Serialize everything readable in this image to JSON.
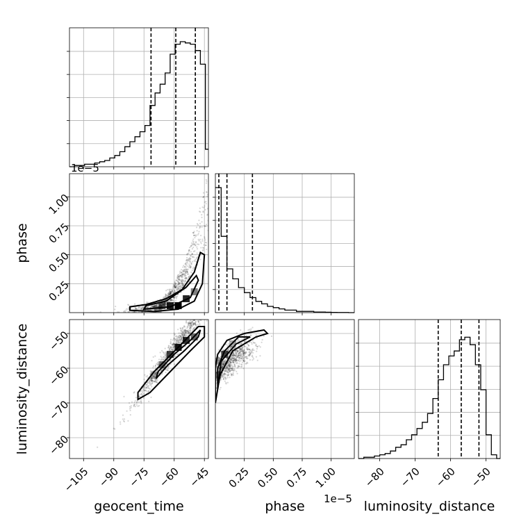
{
  "chart_data": {
    "type": "corner",
    "parameters": [
      "geocent_time",
      "phase",
      "luminosity_distance"
    ],
    "axis_labels": {
      "geocent_time": "geocent_time",
      "phase": "phase",
      "luminosity_distance": "luminosity_distance"
    },
    "offset_labels": {
      "phase_x": "1e−5",
      "phase_y": "1e−5"
    },
    "ticks": {
      "geocent_time": {
        "values": [
          -105,
          -90,
          -75,
          -60,
          -45
        ],
        "labels": [
          "−105",
          "−90",
          "−75",
          "−60",
          "−45"
        ]
      },
      "phase": {
        "values": [
          0.25,
          0.5,
          0.75,
          1.0
        ],
        "labels": [
          "0.25",
          "0.50",
          "0.75",
          "1.00"
        ]
      },
      "luminosity_distance": {
        "values": [
          -80,
          -70,
          -60,
          -50
        ],
        "labels": [
          "−80",
          "−70",
          "−60",
          "−50"
        ]
      }
    },
    "ranges": {
      "geocent_time": [
        -112,
        -43
      ],
      "phase": [
        0.0,
        1.2
      ],
      "luminosity_distance": [
        -86,
        -46
      ]
    },
    "histograms": {
      "geocent_time": {
        "bin_edges": [
          -112,
          -109.5,
          -107,
          -104.5,
          -102,
          -99.5,
          -97,
          -94.5,
          -92,
          -89.5,
          -87,
          -84.5,
          -82,
          -79.5,
          -77,
          -74.5,
          -72,
          -69.5,
          -67,
          -64.5,
          -62,
          -59.5,
          -57,
          -54.5,
          -52,
          -49.5,
          -47,
          -44.5,
          -43
        ],
        "counts": [
          0,
          0.01,
          0.01,
          0.02,
          0.02,
          0.03,
          0.04,
          0.05,
          0.07,
          0.09,
          0.12,
          0.16,
          0.2,
          0.24,
          0.28,
          0.33,
          0.49,
          0.59,
          0.66,
          0.75,
          0.9,
          0.98,
          1.0,
          0.99,
          0.98,
          0.93,
          0.82,
          0.14
        ],
        "quantiles": [
          -71.5,
          -59.2,
          -49.5
        ]
      },
      "phase": {
        "bin_edges": [
          0.0,
          0.05,
          0.1,
          0.15,
          0.2,
          0.25,
          0.3,
          0.35,
          0.4,
          0.45,
          0.5,
          0.55,
          0.6,
          0.65,
          0.7,
          0.75,
          0.8,
          0.85,
          0.9,
          0.95,
          1.0,
          1.05,
          1.1,
          1.15,
          1.2
        ],
        "counts": [
          1.0,
          0.61,
          0.35,
          0.27,
          0.2,
          0.16,
          0.12,
          0.09,
          0.07,
          0.05,
          0.04,
          0.03,
          0.02,
          0.02,
          0.01,
          0.01,
          0.01,
          0.005,
          0.005,
          0.003,
          0.002,
          0.001,
          0.001,
          0.0
        ],
        "quantiles": [
          0.03,
          0.1,
          0.32
        ]
      },
      "luminosity_distance": {
        "bin_edges": [
          -86,
          -84.5,
          -83,
          -81.5,
          -80,
          -78.5,
          -77,
          -75.5,
          -74,
          -72.5,
          -71,
          -69.5,
          -68,
          -66.5,
          -65,
          -63.5,
          -62,
          -60.5,
          -59,
          -57.5,
          -56,
          -54.5,
          -53,
          -51.5,
          -50,
          -48.5,
          -47,
          -46
        ],
        "counts": [
          0.0,
          0.01,
          0.01,
          0.02,
          0.03,
          0.04,
          0.06,
          0.09,
          0.11,
          0.15,
          0.19,
          0.24,
          0.29,
          0.36,
          0.48,
          0.63,
          0.75,
          0.82,
          0.86,
          0.95,
          0.97,
          0.91,
          0.75,
          0.55,
          0.19,
          0.03,
          0.0
        ],
        "quantiles": [
          -63.5,
          -57.0,
          -52.0
        ]
      }
    },
    "scatter_panels": [
      {
        "x": "geocent_time",
        "y": "phase",
        "relation": "y ≈ curved increasing; near 0 at x ≤ −70, rising to ~0.9 at x ≈ −45"
      },
      {
        "x": "geocent_time",
        "y": "luminosity_distance",
        "relation": "linear, y ≈ −56 + 0.78·(x + 62)"
      },
      {
        "x": "phase",
        "y": "luminosity_distance",
        "relation": "concave increasing from ~−64 at x ≈ 0 to ~−50 at x ≈ 0.6"
      }
    ],
    "grid": true
  }
}
